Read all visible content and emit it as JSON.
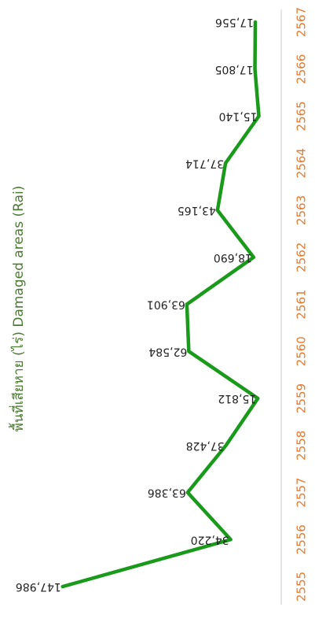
{
  "chart_data": {
    "type": "line",
    "y_label": "พื้นที่เสียหาย (ไร่) Damaged areas (Rai)",
    "categories": [
      "2555",
      "2556",
      "2557",
      "2558",
      "2559",
      "2560",
      "2561",
      "2562",
      "2563",
      "2564",
      "2565",
      "2566",
      "2567"
    ],
    "series": [
      {
        "name": "Damaged areas",
        "color": "#1a9a1a",
        "values": [
          147986,
          34220,
          63386,
          37428,
          15812,
          62584,
          63901,
          18690,
          43165,
          37714,
          15140,
          17805,
          17556
        ],
        "value_labels": [
          "147,986",
          "34,220",
          "63,386",
          "37,428",
          "15,812",
          "62,584",
          "63,901",
          "18,690",
          "43,165",
          "37,714",
          "15,140",
          "17,805",
          "17,556"
        ]
      }
    ],
    "ylim": [
      0,
      150000
    ]
  }
}
